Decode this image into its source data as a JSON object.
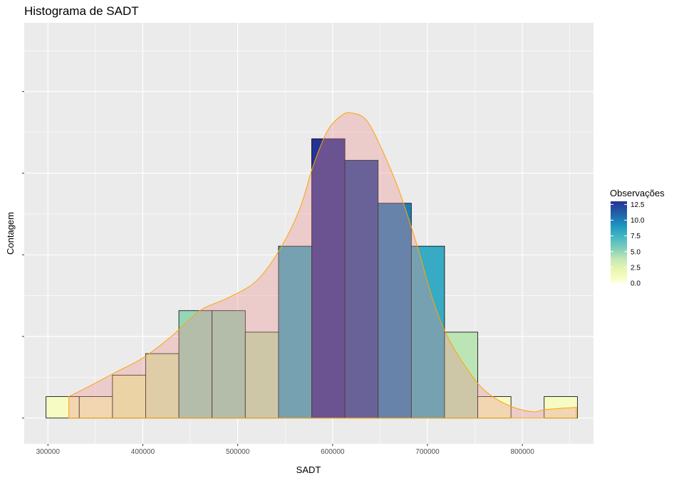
{
  "chart_data": {
    "type": "histogram",
    "title": "Histograma de SADT",
    "xlabel": "SADT",
    "ylabel": "Contagem",
    "xlim": [
      275000,
      875000
    ],
    "ylim": [
      -1.2,
      18.4
    ],
    "x_ticks": [
      300000,
      400000,
      500000,
      600000,
      700000,
      800000
    ],
    "x_tick_labels": [
      "300000",
      "400000",
      "500000",
      "600000",
      "700000",
      "800000"
    ],
    "y_ticks": [
      0,
      3.8,
      7.6,
      11.4,
      15.2,
      19
    ],
    "show_y_tick_labels": false,
    "bin_width": 35000,
    "bins": [
      {
        "start": 298000,
        "count": 1
      },
      {
        "start": 333000,
        "count": 1
      },
      {
        "start": 368000,
        "count": 2
      },
      {
        "start": 403000,
        "count": 3
      },
      {
        "start": 438000,
        "count": 5
      },
      {
        "start": 473000,
        "count": 5
      },
      {
        "start": 508000,
        "count": 4
      },
      {
        "start": 543000,
        "count": 8
      },
      {
        "start": 578000,
        "count": 13
      },
      {
        "start": 613000,
        "count": 12
      },
      {
        "start": 648000,
        "count": 10
      },
      {
        "start": 683000,
        "count": 8
      },
      {
        "start": 718000,
        "count": 4
      },
      {
        "start": 753000,
        "count": 1
      },
      {
        "start": 788000,
        "count": 0
      },
      {
        "start": 823000,
        "count": 1
      }
    ],
    "density": {
      "x": [
        322000,
        340000,
        370000,
        400000,
        430000,
        460000,
        490000,
        520000,
        545000,
        565000,
        580000,
        595000,
        610000,
        620000,
        635000,
        650000,
        670000,
        690000,
        705000,
        720000,
        740000,
        760000,
        785000,
        810000,
        825000,
        857000
      ],
      "y": [
        1.0,
        1.4,
        2.1,
        2.8,
        3.8,
        5.0,
        5.6,
        6.4,
        7.9,
        9.7,
        11.8,
        13.4,
        14.1,
        14.2,
        13.9,
        12.7,
        10.6,
        7.9,
        5.6,
        3.9,
        2.4,
        1.3,
        0.6,
        0.3,
        0.4,
        0.5
      ],
      "fill": "#ee9090",
      "fill_opacity": 0.35,
      "line_color": "#ffa500"
    },
    "legend": {
      "title": "Observações",
      "position": "right",
      "ticks": [
        0,
        2.5,
        5,
        7.5,
        10,
        12.5
      ],
      "tick_labels": [
        "0.0",
        "2.5",
        "5.0",
        "7.5",
        "10.0",
        "12.5"
      ],
      "range": [
        0,
        13
      ],
      "gradient": [
        "#ffffd9",
        "#edf8b1",
        "#c7e9b4",
        "#7fcdbb",
        "#41b6c4",
        "#1d91c0",
        "#225ea8",
        "#253494"
      ]
    },
    "panel_background": "#ebebeb",
    "grid_color": "#ffffff",
    "bar_outline": "#000000"
  }
}
